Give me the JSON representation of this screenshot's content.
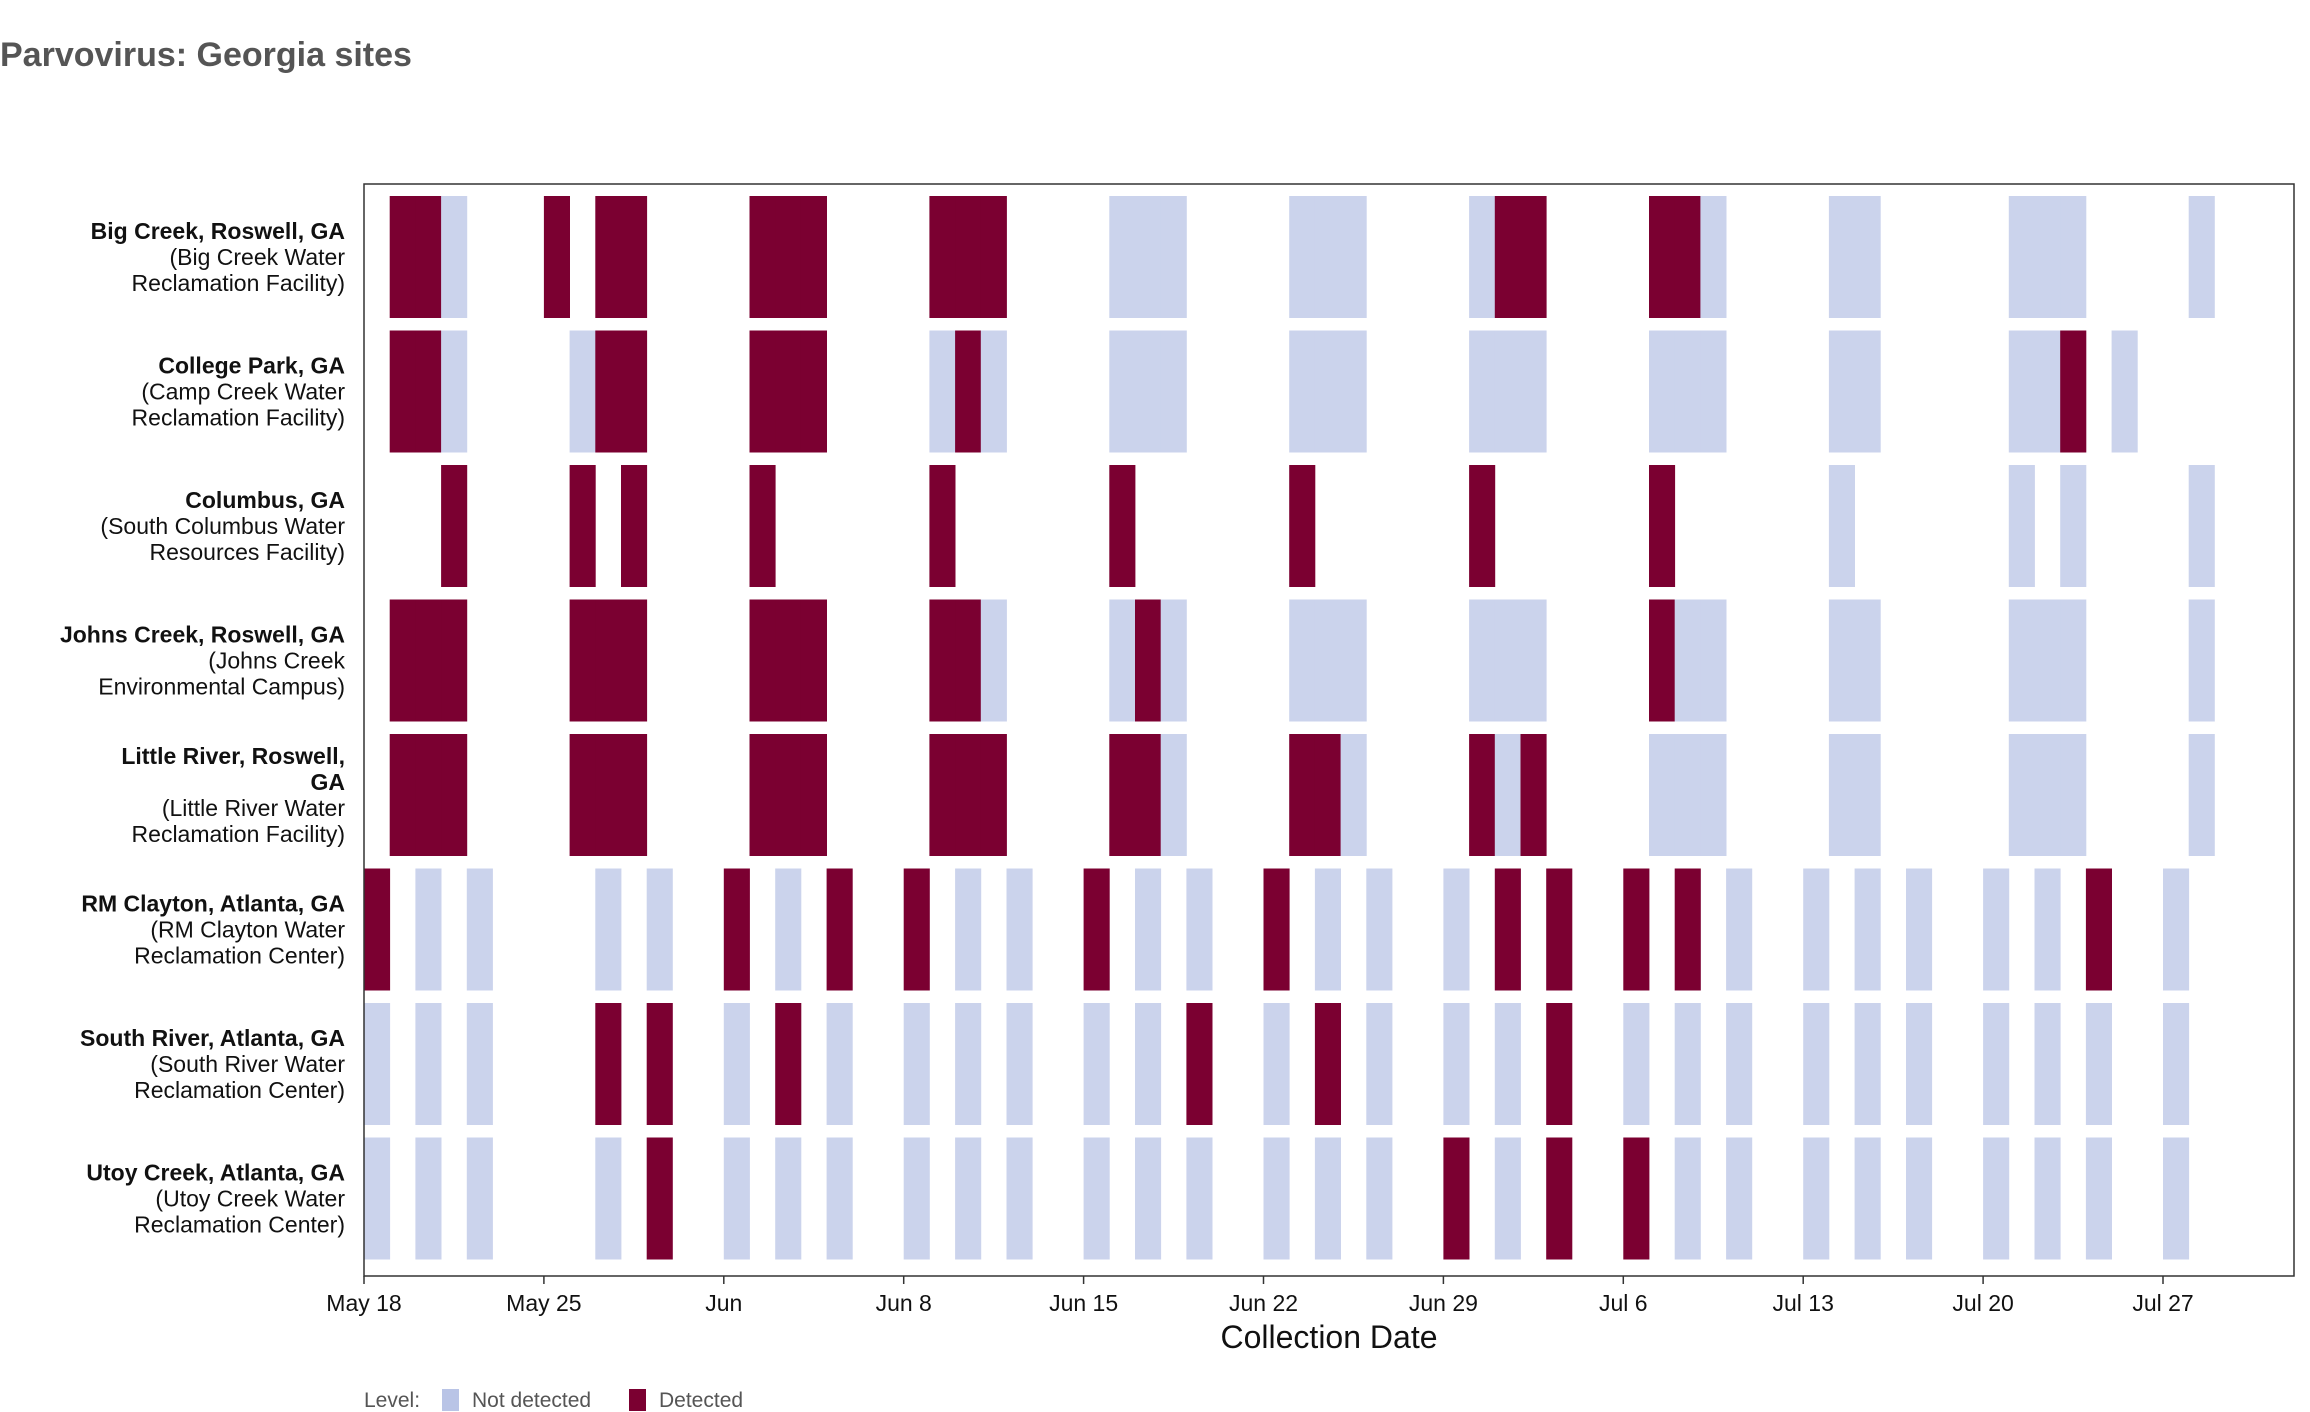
{
  "chart_data": {
    "type": "heatmap",
    "title": "Parvovirus: Georgia sites",
    "xlabel": "Collection Date",
    "x_tick_labels": [
      "May 18",
      "May 25",
      "Jun",
      "Jun 8",
      "Jun 15",
      "Jun 22",
      "Jun 29",
      "Jul 6",
      "Jul 13",
      "Jul 20",
      "Jul 27"
    ],
    "x_ticks": [
      "2024-05-18",
      "2024-05-25",
      "2024-06-01",
      "2024-06-08",
      "2024-06-15",
      "2024-06-22",
      "2024-06-29",
      "2024-07-06",
      "2024-07-13",
      "2024-07-20",
      "2024-07-27"
    ],
    "xlim": [
      "2024-05-18",
      "2024-08-01"
    ],
    "legend": {
      "title": "Level:",
      "position": "bottom-left",
      "items": [
        {
          "label": "Not detected",
          "key": "N"
        },
        {
          "label": "Detected",
          "key": "D"
        }
      ]
    },
    "colors": {
      "not_detected": "#cbd3ec",
      "detected": "#7b0031",
      "legend_not_detected": "#b9c4e6"
    },
    "sites": [
      {
        "name": "Big Creek, Roswell, GA",
        "facility": [
          "(Big Creek Water",
          "Reclamation Facility)"
        ],
        "samples": [
          [
            "2024-05-19",
            "D"
          ],
          [
            "2024-05-20",
            "D"
          ],
          [
            "2024-05-21",
            "N"
          ],
          [
            "2024-05-25",
            "D"
          ],
          [
            "2024-05-27",
            "D"
          ],
          [
            "2024-05-28",
            "D"
          ],
          [
            "2024-06-02",
            "D"
          ],
          [
            "2024-06-03",
            "D"
          ],
          [
            "2024-06-04",
            "D"
          ],
          [
            "2024-06-09",
            "D"
          ],
          [
            "2024-06-10",
            "D"
          ],
          [
            "2024-06-11",
            "D"
          ],
          [
            "2024-06-16",
            "N"
          ],
          [
            "2024-06-17",
            "N"
          ],
          [
            "2024-06-18",
            "N"
          ],
          [
            "2024-06-23",
            "N"
          ],
          [
            "2024-06-24",
            "N"
          ],
          [
            "2024-06-25",
            "N"
          ],
          [
            "2024-06-30",
            "N"
          ],
          [
            "2024-07-01",
            "D"
          ],
          [
            "2024-07-02",
            "D"
          ],
          [
            "2024-07-07",
            "D"
          ],
          [
            "2024-07-08",
            "D"
          ],
          [
            "2024-07-09",
            "N"
          ],
          [
            "2024-07-14",
            "N"
          ],
          [
            "2024-07-15",
            "N"
          ],
          [
            "2024-07-21",
            "N"
          ],
          [
            "2024-07-22",
            "N"
          ],
          [
            "2024-07-23",
            "N"
          ],
          [
            "2024-07-28",
            "N"
          ]
        ]
      },
      {
        "name": "College Park, GA",
        "facility": [
          "(Camp Creek Water",
          "Reclamation Facility)"
        ],
        "samples": [
          [
            "2024-05-19",
            "D"
          ],
          [
            "2024-05-20",
            "D"
          ],
          [
            "2024-05-21",
            "N"
          ],
          [
            "2024-05-26",
            "N"
          ],
          [
            "2024-05-27",
            "D"
          ],
          [
            "2024-05-28",
            "D"
          ],
          [
            "2024-06-02",
            "D"
          ],
          [
            "2024-06-03",
            "D"
          ],
          [
            "2024-06-04",
            "D"
          ],
          [
            "2024-06-09",
            "N"
          ],
          [
            "2024-06-10",
            "D"
          ],
          [
            "2024-06-11",
            "N"
          ],
          [
            "2024-06-16",
            "N"
          ],
          [
            "2024-06-17",
            "N"
          ],
          [
            "2024-06-18",
            "N"
          ],
          [
            "2024-06-23",
            "N"
          ],
          [
            "2024-06-24",
            "N"
          ],
          [
            "2024-06-25",
            "N"
          ],
          [
            "2024-06-30",
            "N"
          ],
          [
            "2024-07-01",
            "N"
          ],
          [
            "2024-07-02",
            "N"
          ],
          [
            "2024-07-07",
            "N"
          ],
          [
            "2024-07-08",
            "N"
          ],
          [
            "2024-07-09",
            "N"
          ],
          [
            "2024-07-14",
            "N"
          ],
          [
            "2024-07-15",
            "N"
          ],
          [
            "2024-07-21",
            "N"
          ],
          [
            "2024-07-22",
            "N"
          ],
          [
            "2024-07-23",
            "D"
          ],
          [
            "2024-07-25",
            "N"
          ]
        ]
      },
      {
        "name": "Columbus, GA",
        "facility": [
          "(South Columbus Water",
          "Resources Facility)"
        ],
        "samples": [
          [
            "2024-05-21",
            "D"
          ],
          [
            "2024-05-26",
            "D"
          ],
          [
            "2024-05-28",
            "D"
          ],
          [
            "2024-06-02",
            "D"
          ],
          [
            "2024-06-09",
            "D"
          ],
          [
            "2024-06-16",
            "D"
          ],
          [
            "2024-06-23",
            "D"
          ],
          [
            "2024-06-30",
            "D"
          ],
          [
            "2024-07-07",
            "D"
          ],
          [
            "2024-07-14",
            "N"
          ],
          [
            "2024-07-21",
            "N"
          ],
          [
            "2024-07-23",
            "N"
          ],
          [
            "2024-07-28",
            "N"
          ]
        ]
      },
      {
        "name": "Johns Creek, Roswell, GA",
        "facility": [
          "(Johns Creek",
          "Environmental Campus)"
        ],
        "samples": [
          [
            "2024-05-19",
            "D"
          ],
          [
            "2024-05-20",
            "D"
          ],
          [
            "2024-05-21",
            "D"
          ],
          [
            "2024-05-26",
            "D"
          ],
          [
            "2024-05-27",
            "D"
          ],
          [
            "2024-05-28",
            "D"
          ],
          [
            "2024-06-02",
            "D"
          ],
          [
            "2024-06-03",
            "D"
          ],
          [
            "2024-06-04",
            "D"
          ],
          [
            "2024-06-09",
            "D"
          ],
          [
            "2024-06-10",
            "D"
          ],
          [
            "2024-06-11",
            "N"
          ],
          [
            "2024-06-16",
            "N"
          ],
          [
            "2024-06-17",
            "D"
          ],
          [
            "2024-06-18",
            "N"
          ],
          [
            "2024-06-23",
            "N"
          ],
          [
            "2024-06-24",
            "N"
          ],
          [
            "2024-06-25",
            "N"
          ],
          [
            "2024-06-30",
            "N"
          ],
          [
            "2024-07-01",
            "N"
          ],
          [
            "2024-07-02",
            "N"
          ],
          [
            "2024-07-07",
            "D"
          ],
          [
            "2024-07-08",
            "N"
          ],
          [
            "2024-07-09",
            "N"
          ],
          [
            "2024-07-14",
            "N"
          ],
          [
            "2024-07-15",
            "N"
          ],
          [
            "2024-07-21",
            "N"
          ],
          [
            "2024-07-22",
            "N"
          ],
          [
            "2024-07-23",
            "N"
          ],
          [
            "2024-07-28",
            "N"
          ]
        ]
      },
      {
        "name": "Little River, Roswell, GA",
        "facility": [
          "(Little River Water",
          "Reclamation Facility)"
        ],
        "samples": [
          [
            "2024-05-19",
            "D"
          ],
          [
            "2024-05-20",
            "D"
          ],
          [
            "2024-05-21",
            "D"
          ],
          [
            "2024-05-26",
            "D"
          ],
          [
            "2024-05-27",
            "D"
          ],
          [
            "2024-05-28",
            "D"
          ],
          [
            "2024-06-02",
            "D"
          ],
          [
            "2024-06-03",
            "D"
          ],
          [
            "2024-06-04",
            "D"
          ],
          [
            "2024-06-09",
            "D"
          ],
          [
            "2024-06-10",
            "D"
          ],
          [
            "2024-06-11",
            "D"
          ],
          [
            "2024-06-16",
            "D"
          ],
          [
            "2024-06-17",
            "D"
          ],
          [
            "2024-06-18",
            "N"
          ],
          [
            "2024-06-23",
            "D"
          ],
          [
            "2024-06-24",
            "D"
          ],
          [
            "2024-06-25",
            "N"
          ],
          [
            "2024-06-30",
            "D"
          ],
          [
            "2024-07-01",
            "N"
          ],
          [
            "2024-07-02",
            "D"
          ],
          [
            "2024-07-07",
            "N"
          ],
          [
            "2024-07-08",
            "N"
          ],
          [
            "2024-07-09",
            "N"
          ],
          [
            "2024-07-14",
            "N"
          ],
          [
            "2024-07-15",
            "N"
          ],
          [
            "2024-07-21",
            "N"
          ],
          [
            "2024-07-22",
            "N"
          ],
          [
            "2024-07-23",
            "N"
          ],
          [
            "2024-07-28",
            "N"
          ]
        ]
      },
      {
        "name": "RM Clayton, Atlanta, GA",
        "facility": [
          "(RM Clayton Water",
          "Reclamation Center)"
        ],
        "samples": [
          [
            "2024-05-18",
            "D"
          ],
          [
            "2024-05-20",
            "N"
          ],
          [
            "2024-05-22",
            "N"
          ],
          [
            "2024-05-27",
            "N"
          ],
          [
            "2024-05-29",
            "N"
          ],
          [
            "2024-06-01",
            "D"
          ],
          [
            "2024-06-03",
            "N"
          ],
          [
            "2024-06-05",
            "D"
          ],
          [
            "2024-06-08",
            "D"
          ],
          [
            "2024-06-10",
            "N"
          ],
          [
            "2024-06-12",
            "N"
          ],
          [
            "2024-06-15",
            "D"
          ],
          [
            "2024-06-17",
            "N"
          ],
          [
            "2024-06-19",
            "N"
          ],
          [
            "2024-06-22",
            "D"
          ],
          [
            "2024-06-24",
            "N"
          ],
          [
            "2024-06-26",
            "N"
          ],
          [
            "2024-06-29",
            "N"
          ],
          [
            "2024-07-01",
            "D"
          ],
          [
            "2024-07-03",
            "D"
          ],
          [
            "2024-07-06",
            "D"
          ],
          [
            "2024-07-08",
            "D"
          ],
          [
            "2024-07-10",
            "N"
          ],
          [
            "2024-07-13",
            "N"
          ],
          [
            "2024-07-15",
            "N"
          ],
          [
            "2024-07-17",
            "N"
          ],
          [
            "2024-07-20",
            "N"
          ],
          [
            "2024-07-22",
            "N"
          ],
          [
            "2024-07-24",
            "D"
          ],
          [
            "2024-07-27",
            "N"
          ]
        ]
      },
      {
        "name": "South River, Atlanta, GA",
        "facility": [
          "(South River Water",
          "Reclamation Center)"
        ],
        "samples": [
          [
            "2024-05-18",
            "N"
          ],
          [
            "2024-05-20",
            "N"
          ],
          [
            "2024-05-22",
            "N"
          ],
          [
            "2024-05-27",
            "D"
          ],
          [
            "2024-05-29",
            "D"
          ],
          [
            "2024-06-01",
            "N"
          ],
          [
            "2024-06-03",
            "D"
          ],
          [
            "2024-06-05",
            "N"
          ],
          [
            "2024-06-08",
            "N"
          ],
          [
            "2024-06-10",
            "N"
          ],
          [
            "2024-06-12",
            "N"
          ],
          [
            "2024-06-15",
            "N"
          ],
          [
            "2024-06-17",
            "N"
          ],
          [
            "2024-06-19",
            "D"
          ],
          [
            "2024-06-22",
            "N"
          ],
          [
            "2024-06-24",
            "D"
          ],
          [
            "2024-06-26",
            "N"
          ],
          [
            "2024-06-29",
            "N"
          ],
          [
            "2024-07-01",
            "N"
          ],
          [
            "2024-07-03",
            "D"
          ],
          [
            "2024-07-06",
            "N"
          ],
          [
            "2024-07-08",
            "N"
          ],
          [
            "2024-07-10",
            "N"
          ],
          [
            "2024-07-13",
            "N"
          ],
          [
            "2024-07-15",
            "N"
          ],
          [
            "2024-07-17",
            "N"
          ],
          [
            "2024-07-20",
            "N"
          ],
          [
            "2024-07-22",
            "N"
          ],
          [
            "2024-07-24",
            "N"
          ],
          [
            "2024-07-27",
            "N"
          ]
        ]
      },
      {
        "name": "Utoy Creek, Atlanta, GA",
        "facility": [
          "(Utoy Creek Water",
          "Reclamation Center)"
        ],
        "samples": [
          [
            "2024-05-18",
            "N"
          ],
          [
            "2024-05-20",
            "N"
          ],
          [
            "2024-05-22",
            "N"
          ],
          [
            "2024-05-27",
            "N"
          ],
          [
            "2024-05-29",
            "D"
          ],
          [
            "2024-06-01",
            "N"
          ],
          [
            "2024-06-03",
            "N"
          ],
          [
            "2024-06-05",
            "N"
          ],
          [
            "2024-06-08",
            "N"
          ],
          [
            "2024-06-10",
            "N"
          ],
          [
            "2024-06-12",
            "N"
          ],
          [
            "2024-06-15",
            "N"
          ],
          [
            "2024-06-17",
            "N"
          ],
          [
            "2024-06-19",
            "N"
          ],
          [
            "2024-06-22",
            "N"
          ],
          [
            "2024-06-24",
            "N"
          ],
          [
            "2024-06-26",
            "N"
          ],
          [
            "2024-06-29",
            "D"
          ],
          [
            "2024-07-01",
            "N"
          ],
          [
            "2024-07-03",
            "D"
          ],
          [
            "2024-07-06",
            "D"
          ],
          [
            "2024-07-08",
            "N"
          ],
          [
            "2024-07-10",
            "N"
          ],
          [
            "2024-07-13",
            "N"
          ],
          [
            "2024-07-15",
            "N"
          ],
          [
            "2024-07-17",
            "N"
          ],
          [
            "2024-07-20",
            "N"
          ],
          [
            "2024-07-22",
            "N"
          ],
          [
            "2024-07-24",
            "N"
          ],
          [
            "2024-07-27",
            "N"
          ]
        ]
      }
    ]
  }
}
